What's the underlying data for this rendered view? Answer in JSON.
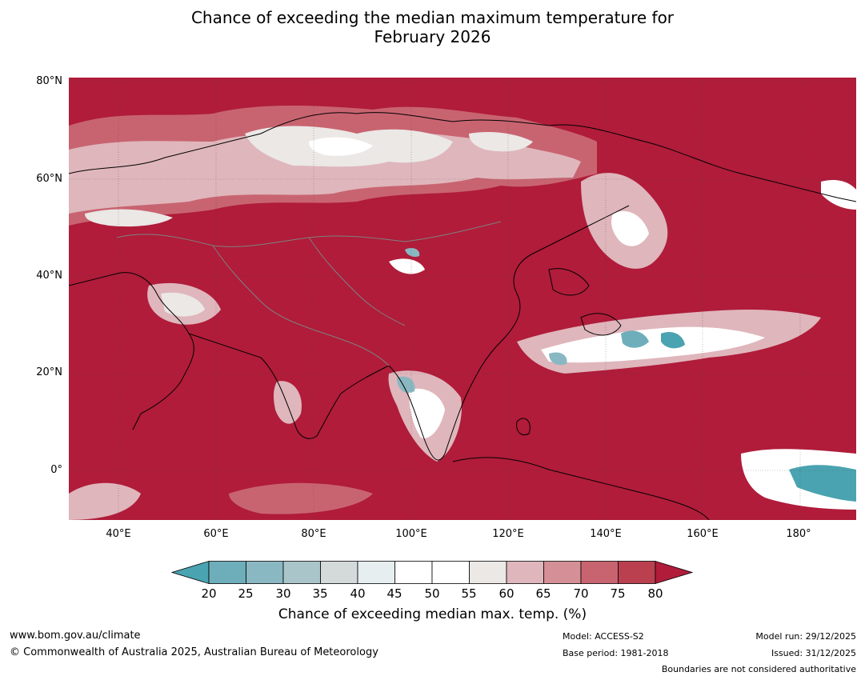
{
  "title": {
    "line1": "Chance of exceeding the median maximum temperature for",
    "line2": "February 2026"
  },
  "map": {
    "lat_labels": [
      "80°N",
      "60°N",
      "40°N",
      "20°N",
      "0°"
    ],
    "lon_labels": [
      "40°E",
      "60°E",
      "80°E",
      "100°E",
      "120°E",
      "140°E",
      "160°E",
      "180°"
    ],
    "colors": {
      "dominant": "#b01c3a",
      "teal": "#4aa3b0",
      "white": "#ffffff",
      "pink": "#dfb6bc",
      "coastline": "#000000",
      "border": "#808080"
    }
  },
  "colorbar": {
    "ticks": [
      "20",
      "25",
      "30",
      "35",
      "40",
      "45",
      "50",
      "55",
      "60",
      "65",
      "70",
      "75",
      "80"
    ],
    "colors": [
      "#4aa3b0",
      "#6eaebb",
      "#89b8c2",
      "#a9c5ca",
      "#d4d9da",
      "#e6eef0",
      "#ffffff",
      "#ffffff",
      "#ebe8e6",
      "#dfb6bc",
      "#d48f97",
      "#c86470",
      "#ba4050",
      "#b01c3a"
    ],
    "label": "Chance of exceeding median max. temp. (%)"
  },
  "footer": {
    "website": "www.bom.gov.au/climate",
    "copyright": "© Commonwealth of Australia 2025, Australian Bureau of Meteorology",
    "model": "Model: ACCESS-S2",
    "base_period": "Base period: 1981-2018",
    "model_run": "Model run: 29/12/2025",
    "issued": "Issued: 31/12/2025",
    "disclaimer": "Boundaries are not considered authoritative"
  }
}
